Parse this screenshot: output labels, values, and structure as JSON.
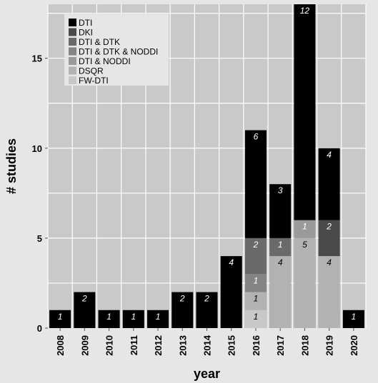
{
  "chart_data": {
    "type": "bar",
    "stacked": true,
    "xlabel": "year",
    "ylabel": "# studies",
    "ylim": [
      0,
      18
    ],
    "yticks": [
      0,
      5,
      10,
      15
    ],
    "grid": true,
    "legend_position": "top-left",
    "categories": [
      "2008",
      "2009",
      "2010",
      "2011",
      "2012",
      "2013",
      "2014",
      "2015",
      "2016",
      "2017",
      "2018",
      "2019",
      "2020"
    ],
    "series": [
      {
        "name": "FW-DTI",
        "color": "#c8c8c8",
        "values": [
          0,
          0,
          0,
          0,
          0,
          0,
          0,
          0,
          1,
          0,
          0,
          0,
          0
        ],
        "labels": [
          "",
          "",
          "",
          "",
          "",
          "",
          "",
          "",
          "1",
          "",
          "",
          "",
          ""
        ]
      },
      {
        "name": "DSQR",
        "color": "#b2b2b2",
        "values": [
          0,
          0,
          0,
          0,
          0,
          0,
          0,
          0,
          1,
          4,
          5,
          4,
          0
        ],
        "labels": [
          "",
          "",
          "",
          "",
          "",
          "",
          "",
          "",
          "1",
          "4",
          "5",
          "4",
          ""
        ]
      },
      {
        "name": "DTI & NODDI",
        "color": "#9a9a9a",
        "values": [
          0,
          0,
          0,
          0,
          0,
          0,
          0,
          0,
          0,
          0,
          1,
          0,
          0
        ],
        "labels": [
          "",
          "",
          "",
          "",
          "",
          "",
          "",
          "",
          "",
          "",
          "1",
          "",
          ""
        ]
      },
      {
        "name": "DTI & DTK & NODDI",
        "color": "#848484",
        "values": [
          0,
          0,
          0,
          0,
          0,
          0,
          0,
          0,
          1,
          0,
          0,
          0,
          0
        ],
        "labels": [
          "",
          "",
          "",
          "",
          "",
          "",
          "",
          "",
          "1",
          "",
          "",
          "",
          ""
        ]
      },
      {
        "name": "DTI & DTK",
        "color": "#6a6a6a",
        "values": [
          0,
          0,
          0,
          0,
          0,
          0,
          0,
          0,
          2,
          1,
          0,
          0,
          0
        ],
        "labels": [
          "",
          "",
          "",
          "",
          "",
          "",
          "",
          "",
          "2",
          "1",
          "",
          "",
          ""
        ]
      },
      {
        "name": "DKI",
        "color": "#4a4a4a",
        "values": [
          0,
          0,
          0,
          0,
          0,
          0,
          0,
          0,
          0,
          0,
          0,
          2,
          0
        ],
        "labels": [
          "",
          "",
          "",
          "",
          "",
          "",
          "",
          "",
          "",
          "",
          "",
          "2",
          ""
        ]
      },
      {
        "name": "DTI",
        "color": "#000000",
        "values": [
          1,
          2,
          1,
          1,
          1,
          2,
          2,
          4,
          6,
          3,
          12,
          4,
          1
        ],
        "labels": [
          "1",
          "2",
          "1",
          "1",
          "1",
          "2",
          "2",
          "4",
          "6",
          "3",
          "12",
          "4",
          "1"
        ]
      }
    ],
    "legend_order": [
      "DTI",
      "DKI",
      "DTI & DTK",
      "DTI & DTK & NODDI",
      "DTI & NODDI",
      "DSQR",
      "FW-DTI"
    ]
  }
}
